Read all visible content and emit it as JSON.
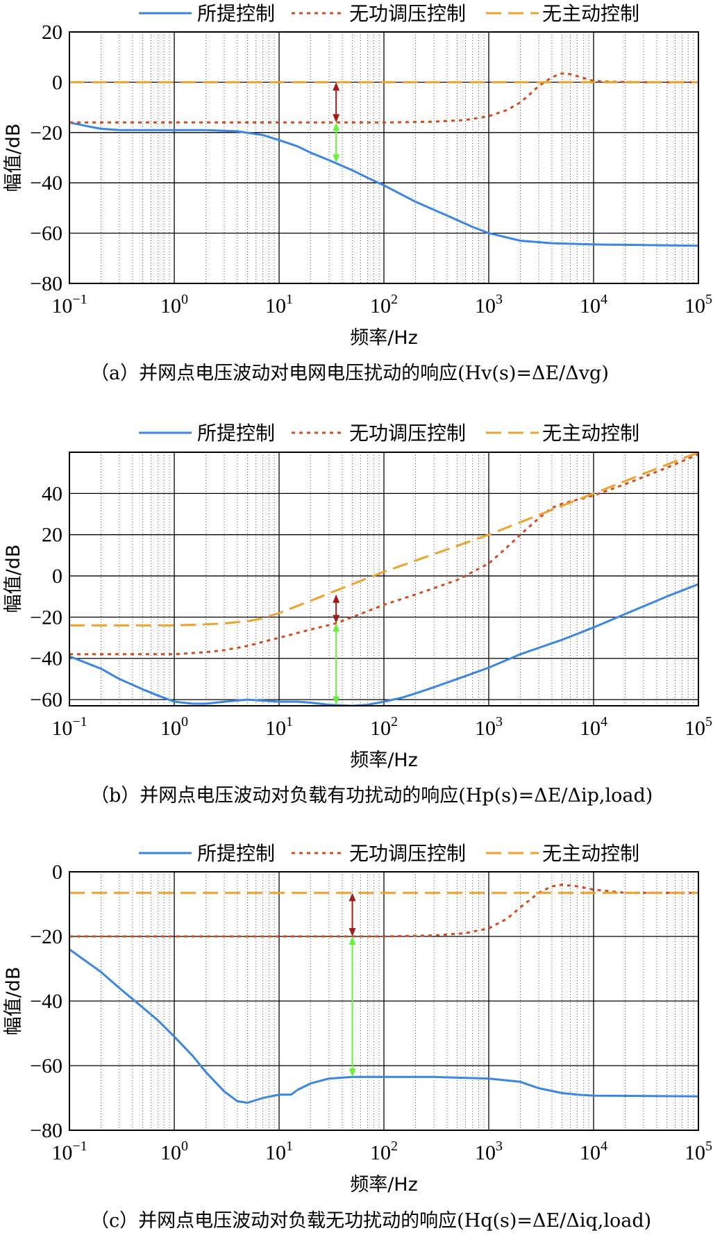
{
  "colors": {
    "proposed": "#3a86e4",
    "reactive": "#d64b1e",
    "none": "#f0a12c",
    "arrow_red": "#a31a1a",
    "arrow_green": "#6af23a"
  },
  "legend": [
    {
      "key": "proposed",
      "label": "所提控制",
      "dash": "solid"
    },
    {
      "key": "reactive",
      "label": "无功调压控制",
      "dash": "dotted"
    },
    {
      "key": "none",
      "label": "无主动控制",
      "dash": "dashed"
    }
  ],
  "chart_data": [
    {
      "id": "a",
      "type": "line",
      "xscale": "log",
      "xlim": [
        0.1,
        100000
      ],
      "ylim": [
        -80,
        20
      ],
      "yticks": [
        -80,
        -60,
        -40,
        -20,
        0,
        20
      ],
      "xticks": [
        {
          "v": 0.1,
          "base": "10",
          "exp": "−1"
        },
        {
          "v": 1,
          "base": "10",
          "exp": "0"
        },
        {
          "v": 10,
          "base": "10",
          "exp": "1"
        },
        {
          "v": 100,
          "base": "10",
          "exp": "2"
        },
        {
          "v": 1000,
          "base": "10",
          "exp": "3"
        },
        {
          "v": 10000,
          "base": "10",
          "exp": "4"
        },
        {
          "v": 100000,
          "base": "10",
          "exp": "5"
        }
      ],
      "xlabel": "频率/Hz",
      "ylabel": "幅值/dB",
      "caption": "（a）并网点电压波动对电网电压扰动的响应(Hv(s)=ΔE/Δvg)",
      "series": [
        {
          "name": "所提控制",
          "key": "proposed",
          "dash": "solid",
          "x": [
            0.1,
            0.15,
            0.2,
            0.3,
            0.5,
            1,
            2,
            4,
            7,
            10,
            15,
            20,
            30,
            50,
            70,
            100,
            200,
            400,
            700,
            1000,
            2000,
            4000,
            10000,
            100000
          ],
          "y": [
            -16,
            -17.5,
            -18.5,
            -19,
            -19,
            -19,
            -19,
            -19.5,
            -21,
            -23,
            -25.5,
            -28,
            -31,
            -35,
            -38,
            -41,
            -47.5,
            -53,
            -57.5,
            -60,
            -63,
            -64,
            -64.5,
            -65
          ]
        },
        {
          "name": "无功调压控制",
          "key": "reactive",
          "dash": "dotted",
          "x": [
            0.1,
            1,
            10,
            100,
            300,
            600,
            1000,
            1500,
            2000,
            2500,
            3000,
            4000,
            5000,
            6000,
            8000,
            10000,
            15000,
            30000,
            100000
          ],
          "y": [
            -16,
            -16,
            -16,
            -16,
            -15.7,
            -15,
            -13.5,
            -11,
            -8,
            -4.5,
            -1.5,
            2,
            3.5,
            3.2,
            1.7,
            0.5,
            0.2,
            0,
            0
          ]
        },
        {
          "name": "无主动控制",
          "key": "none",
          "dash": "dashed",
          "x": [
            0.1,
            100000
          ],
          "y": [
            0,
            0
          ]
        }
      ],
      "arrows": [
        {
          "color": "arrow_red",
          "x": 35,
          "y1": 0,
          "y2": -16
        },
        {
          "color": "arrow_green",
          "x": 35,
          "y1": -16,
          "y2": -32
        }
      ]
    },
    {
      "id": "b",
      "type": "line",
      "xscale": "log",
      "xlim": [
        0.1,
        100000
      ],
      "ylim": [
        -63,
        60
      ],
      "yticks": [
        -60,
        -40,
        -20,
        0,
        20,
        40
      ],
      "xticks": [
        {
          "v": 0.1,
          "base": "10",
          "exp": "−1"
        },
        {
          "v": 1,
          "base": "10",
          "exp": "0"
        },
        {
          "v": 10,
          "base": "10",
          "exp": "1"
        },
        {
          "v": 100,
          "base": "10",
          "exp": "2"
        },
        {
          "v": 1000,
          "base": "10",
          "exp": "3"
        },
        {
          "v": 10000,
          "base": "10",
          "exp": "4"
        },
        {
          "v": 100000,
          "base": "10",
          "exp": "5"
        }
      ],
      "xlabel": "频率/Hz",
      "ylabel": "幅值/dB",
      "caption": "（b）并网点电压波动对负载有功扰动的响应(Hp(s)=ΔE/Δip,load)",
      "series": [
        {
          "name": "所提控制",
          "key": "proposed",
          "dash": "solid",
          "x": [
            0.1,
            0.2,
            0.3,
            0.5,
            0.7,
            1,
            1.5,
            2,
            3,
            5,
            7,
            10,
            15,
            20,
            30,
            50,
            70,
            100,
            150,
            200,
            300,
            500,
            1000,
            2000,
            5000,
            10000,
            20000,
            50000,
            100000
          ],
          "y": [
            -39,
            -45,
            -50,
            -55,
            -58,
            -61,
            -62,
            -62,
            -61,
            -60,
            -60.5,
            -61,
            -61,
            -61.5,
            -62.5,
            -63,
            -62.5,
            -61,
            -59,
            -57,
            -54,
            -50,
            -44.5,
            -38,
            -31,
            -25,
            -18.5,
            -10,
            -4
          ]
        },
        {
          "name": "无功调压控制",
          "key": "reactive",
          "dash": "dotted",
          "x": [
            0.1,
            0.5,
            1,
            2,
            3,
            5,
            7,
            10,
            20,
            35,
            50,
            100,
            200,
            500,
            1000,
            1500,
            2000,
            3000,
            4000,
            5000,
            7000,
            10000,
            20000,
            50000,
            100000
          ],
          "y": [
            -38,
            -38,
            -38,
            -37,
            -36,
            -34,
            -32,
            -30,
            -26,
            -23,
            -20,
            -14,
            -9,
            -2,
            6,
            14,
            20,
            28,
            33,
            35,
            37,
            39,
            44.5,
            52.5,
            59
          ]
        },
        {
          "name": "无主动控制",
          "key": "none",
          "dash": "dashed",
          "x": [
            0.1,
            0.5,
            1,
            2,
            3,
            5,
            7,
            10,
            20,
            50,
            100,
            1000,
            10000,
            100000
          ],
          "y": [
            -24,
            -24,
            -24,
            -23.5,
            -23,
            -22,
            -20.5,
            -18,
            -12,
            -4,
            2,
            20,
            40,
            60
          ]
        }
      ],
      "arrows": [
        {
          "color": "arrow_red",
          "x": 35,
          "y1": -9,
          "y2": -23
        },
        {
          "color": "arrow_green",
          "x": 35,
          "y1": -23,
          "y2": -62.5
        }
      ]
    },
    {
      "id": "c",
      "type": "line",
      "xscale": "log",
      "xlim": [
        0.1,
        100000
      ],
      "ylim": [
        -80,
        0
      ],
      "yticks": [
        -80,
        -60,
        -40,
        -20,
        0
      ],
      "xticks": [
        {
          "v": 0.1,
          "base": "10",
          "exp": "−1"
        },
        {
          "v": 1,
          "base": "10",
          "exp": "0"
        },
        {
          "v": 10,
          "base": "10",
          "exp": "1"
        },
        {
          "v": 100,
          "base": "10",
          "exp": "2"
        },
        {
          "v": 1000,
          "base": "10",
          "exp": "3"
        },
        {
          "v": 10000,
          "base": "10",
          "exp": "4"
        },
        {
          "v": 100000,
          "base": "10",
          "exp": "5"
        }
      ],
      "xlabel": "频率/Hz",
      "ylabel": "幅值/dB",
      "caption": "（c）并网点电压波动对负载无功扰动的响应(Hq(s)=ΔE/Δiq,load)",
      "series": [
        {
          "name": "所提控制",
          "key": "proposed",
          "dash": "solid",
          "x": [
            0.1,
            0.2,
            0.3,
            0.5,
            0.7,
            1,
            1.5,
            2,
            3,
            4,
            5,
            7,
            10,
            13,
            15,
            20,
            30,
            50,
            100,
            300,
            1000,
            2000,
            3000,
            5000,
            7000,
            10000,
            100000
          ],
          "y": [
            -24,
            -31,
            -36,
            -42,
            -46,
            -51,
            -57,
            -62,
            -68,
            -71,
            -71.5,
            -70,
            -69,
            -69,
            -67.5,
            -65.5,
            -64,
            -63.5,
            -63.5,
            -63.5,
            -64,
            -65,
            -67,
            -68.5,
            -69,
            -69.3,
            -69.5
          ]
        },
        {
          "name": "无功调压控制",
          "key": "reactive",
          "dash": "dotted",
          "x": [
            0.1,
            1,
            10,
            100,
            300,
            600,
            1000,
            1500,
            2000,
            3000,
            4000,
            5000,
            7000,
            10000,
            20000,
            100000
          ],
          "y": [
            -20,
            -20,
            -20,
            -20,
            -19.7,
            -19,
            -17.5,
            -14.5,
            -11,
            -6.5,
            -4.5,
            -4,
            -4.5,
            -5.5,
            -6.5,
            -6.5
          ]
        },
        {
          "name": "无主动控制",
          "key": "none",
          "dash": "dashed",
          "x": [
            0.1,
            100000
          ],
          "y": [
            -6.5,
            -6.5
          ]
        }
      ],
      "arrows": [
        {
          "color": "arrow_red",
          "x": 50,
          "y1": -6.5,
          "y2": -20
        },
        {
          "color": "arrow_green",
          "x": 50,
          "y1": -20,
          "y2": -63.5
        }
      ]
    }
  ]
}
